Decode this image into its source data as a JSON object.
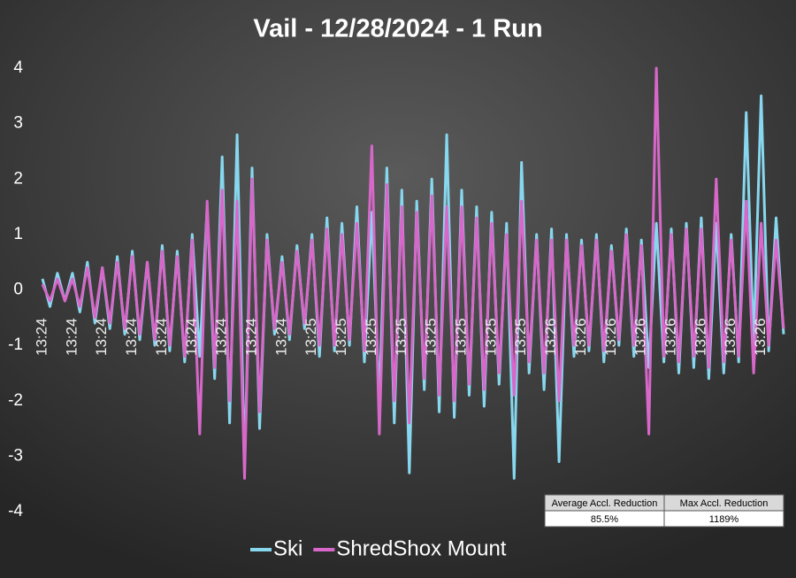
{
  "chart_data": {
    "type": "line",
    "title": "Vail - 12/28/2024 - 1 Run",
    "categories": [
      "13:24",
      null,
      null,
      null,
      "13:24",
      null,
      null,
      null,
      "13:24",
      null,
      null,
      null,
      "13:24",
      null,
      null,
      null,
      "13:24",
      null,
      null,
      null,
      "13:24",
      null,
      null,
      null,
      "13:24",
      null,
      null,
      null,
      "13:24",
      null,
      null,
      null,
      "13:24",
      null,
      null,
      null,
      "13:25",
      null,
      null,
      null,
      "13:25",
      null,
      null,
      null,
      "13:25",
      null,
      null,
      null,
      "13:25",
      null,
      null,
      null,
      "13:25",
      null,
      null,
      null,
      "13:25",
      null,
      null,
      null,
      "13:25",
      null,
      null,
      null,
      "13:25",
      null,
      null,
      null,
      "13:26",
      null,
      null,
      null,
      "13:26",
      null,
      null,
      null,
      "13:26",
      null,
      null,
      null,
      "13:26",
      null,
      null,
      null,
      "13:26",
      null,
      null,
      null,
      "13:26",
      null,
      null,
      null,
      "13:26",
      null,
      null,
      null,
      "13:26",
      null,
      null,
      null
    ],
    "series": [
      {
        "name": "Ski",
        "color": "#87d7ef",
        "values": [
          0.2,
          -0.3,
          0.3,
          -0.2,
          0.3,
          -0.4,
          0.5,
          -0.6,
          0.4,
          -0.7,
          0.6,
          -0.8,
          0.7,
          -0.9,
          0.5,
          -1.0,
          0.8,
          -1.1,
          0.7,
          -1.3,
          1.0,
          -1.2,
          1.5,
          -1.6,
          2.4,
          -2.4,
          2.8,
          -3.2,
          2.2,
          -2.5,
          1.0,
          -0.8,
          0.6,
          -0.9,
          0.8,
          -0.7,
          1.0,
          -1.2,
          1.3,
          -1.1,
          1.2,
          -1.0,
          1.5,
          -1.3,
          1.4,
          -2.0,
          2.2,
          -2.4,
          1.8,
          -3.3,
          1.6,
          -1.8,
          2.0,
          -2.2,
          2.8,
          -2.3,
          1.8,
          -1.9,
          1.5,
          -2.1,
          1.4,
          -1.7,
          1.2,
          -3.4,
          2.3,
          -1.5,
          1.0,
          -1.8,
          1.1,
          -3.1,
          1.0,
          -1.2,
          0.9,
          -1.1,
          1.0,
          -1.3,
          0.8,
          -1.0,
          1.1,
          -1.2,
          0.9,
          -1.4,
          1.2,
          -1.3,
          1.1,
          -1.5,
          1.2,
          -1.4,
          1.3,
          -1.6,
          1.2,
          -1.5,
          1.0,
          -1.3,
          3.2,
          -1.0,
          3.5,
          -1.1,
          1.3,
          -0.8
        ]
      },
      {
        "name": "ShredShox Mount",
        "color": "#d768c9",
        "values": [
          0.1,
          -0.2,
          0.2,
          -0.2,
          0.2,
          -0.3,
          0.4,
          -0.5,
          0.4,
          -0.6,
          0.5,
          -0.7,
          0.6,
          -0.8,
          0.5,
          -0.9,
          0.7,
          -1.0,
          0.6,
          -1.2,
          0.9,
          -2.6,
          1.6,
          -1.4,
          1.8,
          -2.0,
          1.6,
          -3.4,
          2.0,
          -2.2,
          0.9,
          -0.7,
          0.5,
          -0.8,
          0.7,
          -0.6,
          0.9,
          -1.0,
          1.1,
          -1.0,
          1.0,
          -0.9,
          1.2,
          -1.1,
          2.6,
          -2.6,
          1.9,
          -2.0,
          1.5,
          -2.4,
          1.4,
          -1.6,
          1.7,
          -1.9,
          1.5,
          -2.0,
          1.5,
          -1.7,
          1.3,
          -1.8,
          1.2,
          -1.5,
          1.0,
          -1.9,
          1.6,
          -1.3,
          0.9,
          -1.5,
          0.9,
          -2.0,
          0.9,
          -1.0,
          0.8,
          -1.0,
          0.9,
          -1.1,
          0.7,
          -0.9,
          1.0,
          -1.0,
          0.8,
          -2.6,
          4.0,
          -1.2,
          1.0,
          -1.3,
          1.1,
          -1.2,
          1.1,
          -1.4,
          2.0,
          -1.3,
          0.9,
          -1.2,
          1.6,
          -1.5,
          1.2,
          -1.0,
          0.9,
          -0.7
        ]
      }
    ],
    "ylim": [
      -4,
      4
    ],
    "yticks": [
      -4,
      -3,
      -2,
      -1,
      0,
      1,
      2,
      3,
      4
    ],
    "grid": false
  },
  "table": {
    "columns": [
      "Average Accl. Reduction",
      "Max Accl. Reduction"
    ],
    "rows": [
      [
        "85.5%",
        "1189%"
      ]
    ]
  }
}
